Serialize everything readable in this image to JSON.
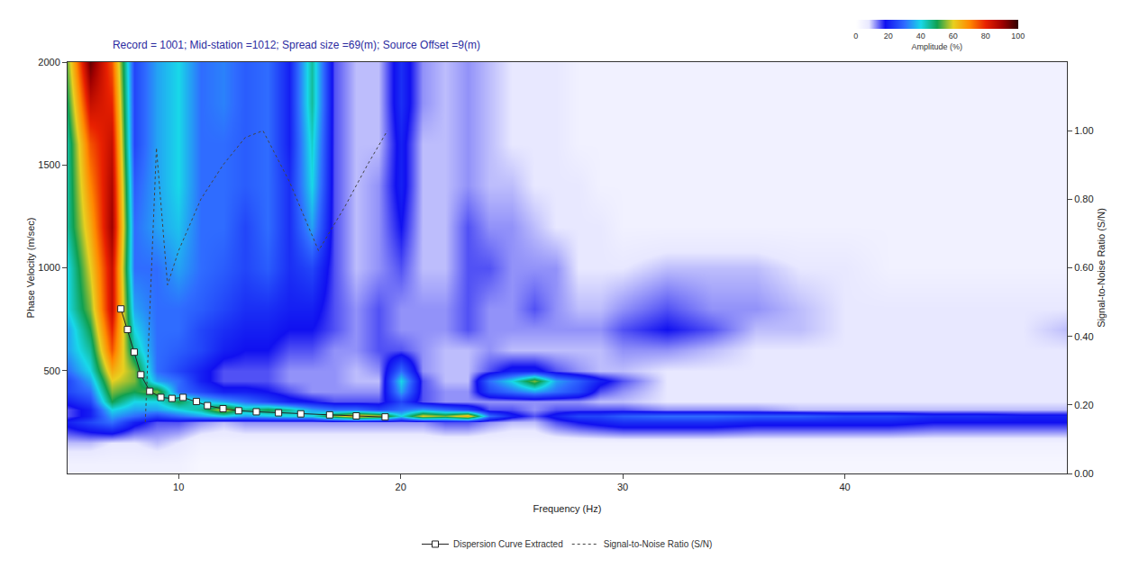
{
  "chart_data": {
    "type": "heatmap",
    "title": "Record = 1001; Mid-station =1012; Spread size =69(m); Source Offset =9(m)",
    "x_label": "Frequency (Hz)",
    "y_label": "Phase Velocity (m/sec)",
    "y2_label": "Signal-to-Noise Ratio (S/N)",
    "xlim": [
      5,
      50
    ],
    "xticks": [
      10,
      20,
      30,
      40
    ],
    "ylim": [
      0,
      2000
    ],
    "yticks": [
      500,
      1000,
      1500,
      2000
    ],
    "y2lim": [
      0,
      1.2
    ],
    "y2ticks": [
      {
        "value": 0,
        "label": "0.00"
      },
      {
        "value": 0.2,
        "label": "0.20"
      },
      {
        "value": 0.4,
        "label": "0.40"
      },
      {
        "value": 0.6,
        "label": "0.60"
      },
      {
        "value": 0.8,
        "label": "0.80"
      },
      {
        "value": 1.0,
        "label": "1.00"
      }
    ],
    "grid": true,
    "legend": "bottom",
    "heatmap": {
      "x": [
        5,
        6,
        7,
        8,
        9,
        10,
        11,
        12,
        13,
        14,
        15,
        16,
        17,
        18,
        19,
        20,
        21,
        22,
        23,
        24,
        25,
        26,
        27,
        28,
        29,
        30,
        32,
        34,
        36,
        38,
        40,
        42,
        44,
        46,
        48,
        50
      ],
      "y": [
        50,
        150,
        250,
        280,
        310,
        350,
        400,
        450,
        500,
        600,
        700,
        800,
        1000,
        1200,
        1400,
        1600,
        1800,
        2000
      ],
      "z": [
        [
          5,
          5,
          5,
          5,
          5,
          5,
          3,
          3,
          3,
          3,
          3,
          3,
          3,
          3,
          3,
          3,
          3,
          3,
          3,
          3,
          3,
          3,
          3,
          3,
          3,
          3,
          3,
          3,
          3,
          3,
          3,
          3,
          3,
          3,
          3,
          3
        ],
        [
          10,
          10,
          8,
          8,
          10,
          8,
          5,
          5,
          5,
          5,
          5,
          5,
          5,
          5,
          5,
          5,
          5,
          5,
          5,
          5,
          5,
          5,
          5,
          5,
          5,
          5,
          5,
          5,
          5,
          5,
          5,
          5,
          5,
          5,
          5,
          5
        ],
        [
          20,
          25,
          30,
          20,
          15,
          15,
          12,
          10,
          12,
          12,
          12,
          12,
          12,
          12,
          12,
          12,
          12,
          15,
          15,
          12,
          10,
          10,
          15,
          18,
          20,
          22,
          22,
          22,
          20,
          20,
          20,
          20,
          18,
          18,
          18,
          18
        ],
        [
          15,
          20,
          35,
          30,
          25,
          30,
          35,
          40,
          35,
          38,
          40,
          40,
          55,
          65,
          60,
          40,
          60,
          55,
          65,
          30,
          20,
          15,
          20,
          25,
          25,
          28,
          30,
          30,
          28,
          28,
          25,
          25,
          22,
          22,
          20,
          20
        ],
        [
          15,
          20,
          40,
          35,
          35,
          40,
          45,
          60,
          45,
          50,
          45,
          35,
          30,
          30,
          25,
          30,
          35,
          30,
          25,
          15,
          15,
          12,
          15,
          15,
          15,
          15,
          12,
          12,
          12,
          10,
          10,
          10,
          10,
          10,
          10,
          10
        ],
        [
          20,
          25,
          50,
          40,
          40,
          50,
          40,
          35,
          30,
          25,
          20,
          18,
          15,
          15,
          15,
          25,
          15,
          12,
          12,
          12,
          12,
          12,
          12,
          12,
          10,
          10,
          8,
          8,
          8,
          8,
          8,
          8,
          8,
          8,
          8,
          8
        ],
        [
          25,
          30,
          55,
          50,
          55,
          30,
          25,
          20,
          20,
          18,
          15,
          12,
          12,
          12,
          12,
          35,
          15,
          12,
          12,
          25,
          30,
          35,
          30,
          25,
          15,
          12,
          8,
          8,
          8,
          8,
          8,
          8,
          8,
          8,
          8,
          8
        ],
        [
          25,
          35,
          60,
          55,
          35,
          30,
          20,
          15,
          15,
          15,
          12,
          12,
          12,
          10,
          10,
          40,
          15,
          10,
          10,
          30,
          40,
          55,
          35,
          28,
          20,
          15,
          8,
          8,
          8,
          8,
          8,
          8,
          8,
          8,
          8,
          8
        ],
        [
          30,
          40,
          65,
          55,
          30,
          25,
          20,
          15,
          15,
          15,
          12,
          12,
          12,
          10,
          12,
          30,
          12,
          10,
          10,
          15,
          20,
          20,
          15,
          12,
          10,
          10,
          8,
          8,
          8,
          8,
          8,
          8,
          8,
          8,
          8,
          8
        ],
        [
          35,
          45,
          75,
          45,
          30,
          28,
          25,
          20,
          18,
          18,
          15,
          15,
          12,
          12,
          15,
          15,
          12,
          10,
          10,
          12,
          10,
          10,
          10,
          10,
          10,
          12,
          12,
          10,
          8,
          8,
          8,
          8,
          8,
          8,
          8,
          8
        ],
        [
          35,
          50,
          80,
          40,
          30,
          30,
          25,
          22,
          20,
          20,
          18,
          18,
          15,
          12,
          15,
          12,
          12,
          12,
          15,
          12,
          12,
          12,
          12,
          12,
          12,
          15,
          18,
          15,
          10,
          10,
          8,
          8,
          8,
          8,
          8,
          10
        ],
        [
          40,
          55,
          85,
          35,
          30,
          30,
          28,
          25,
          22,
          22,
          20,
          20,
          15,
          12,
          15,
          12,
          12,
          12,
          15,
          12,
          12,
          15,
          12,
          10,
          10,
          12,
          15,
          12,
          12,
          10,
          8,
          8,
          8,
          8,
          8,
          8
        ],
        [
          40,
          60,
          85,
          30,
          30,
          35,
          30,
          28,
          25,
          28,
          22,
          25,
          15,
          10,
          12,
          15,
          10,
          10,
          15,
          15,
          12,
          12,
          12,
          8,
          8,
          8,
          10,
          10,
          10,
          8,
          8,
          5,
          5,
          5,
          5,
          5
        ],
        [
          45,
          65,
          90,
          30,
          35,
          38,
          30,
          30,
          25,
          30,
          22,
          35,
          15,
          10,
          12,
          18,
          10,
          10,
          15,
          12,
          12,
          10,
          8,
          8,
          8,
          5,
          5,
          5,
          5,
          5,
          5,
          5,
          5,
          5,
          5,
          5
        ],
        [
          45,
          70,
          88,
          28,
          35,
          40,
          30,
          30,
          28,
          30,
          22,
          40,
          15,
          10,
          12,
          20,
          10,
          10,
          12,
          10,
          10,
          8,
          8,
          8,
          5,
          5,
          5,
          5,
          5,
          5,
          5,
          5,
          5,
          5,
          5,
          5
        ],
        [
          45,
          75,
          85,
          25,
          35,
          40,
          30,
          30,
          28,
          30,
          20,
          42,
          15,
          10,
          10,
          20,
          10,
          10,
          12,
          10,
          8,
          8,
          8,
          5,
          5,
          5,
          5,
          5,
          5,
          5,
          5,
          5,
          5,
          5,
          5,
          5
        ],
        [
          50,
          85,
          80,
          25,
          35,
          40,
          30,
          32,
          28,
          30,
          20,
          45,
          15,
          10,
          10,
          22,
          12,
          10,
          12,
          10,
          8,
          8,
          8,
          5,
          5,
          5,
          5,
          5,
          5,
          5,
          5,
          5,
          5,
          5,
          5,
          5
        ],
        [
          55,
          95,
          75,
          25,
          35,
          40,
          30,
          32,
          28,
          30,
          20,
          45,
          15,
          10,
          10,
          22,
          12,
          10,
          12,
          10,
          8,
          8,
          8,
          5,
          5,
          5,
          5,
          5,
          5,
          5,
          5,
          5,
          5,
          5,
          5,
          5
        ]
      ],
      "colorbar": {
        "title": "Amplitude (%)",
        "range": [
          0,
          100
        ],
        "ticks": [
          0,
          20,
          40,
          60,
          80,
          100
        ]
      }
    },
    "series": [
      {
        "name": "Dispersion Curve Extracted",
        "type": "line",
        "marker": "square",
        "color": "#ffffff",
        "x": [
          7.4,
          7.7,
          8.0,
          8.3,
          8.7,
          9.2,
          9.7,
          10.2,
          10.8,
          11.3,
          12.0,
          12.7,
          13.5,
          14.5,
          15.5,
          16.8,
          18.0,
          19.3
        ],
        "values": [
          800,
          700,
          590,
          480,
          400,
          370,
          365,
          370,
          350,
          330,
          315,
          305,
          300,
          295,
          290,
          285,
          280,
          275
        ]
      },
      {
        "name": "Signal-to-Noise Ratio (S/N)",
        "type": "line",
        "line_style": "dotted",
        "color": "#444444",
        "axis": "y2",
        "x": [
          8.5,
          9.0,
          9.5,
          10.0,
          11.0,
          12.0,
          13.0,
          13.8,
          15.0,
          16.3,
          17.5,
          18.5,
          19.4
        ],
        "values": [
          0.15,
          0.95,
          0.55,
          0.65,
          0.8,
          0.9,
          0.98,
          1.0,
          0.85,
          0.65,
          0.78,
          0.9,
          1.0
        ]
      }
    ]
  }
}
